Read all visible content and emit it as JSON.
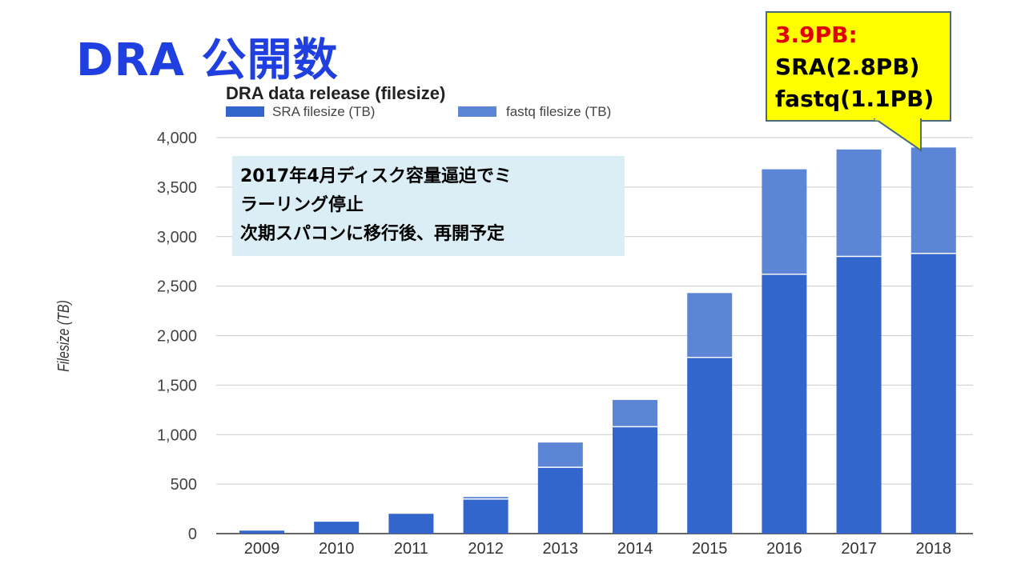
{
  "slide": {
    "title": "DRA 公開数"
  },
  "callout": {
    "line1": "3.9PB:",
    "line2": "SRA(2.8PB)",
    "line3": "fastq(1.1PB)",
    "line1_color": "#e00000",
    "background": "#ffff00"
  },
  "annotation": {
    "lines": [
      "2017年4月ディスク容量逼迫でミ",
      "ラーリング停止",
      "次期スパコンに移行後、再開予定"
    ]
  },
  "chart_data": {
    "type": "bar",
    "stacked": true,
    "title": "DRA data release (filesize)",
    "ylabel": "Filesize (TB)",
    "xlabel": "",
    "categories": [
      "2009",
      "2010",
      "2011",
      "2012",
      "2013",
      "2014",
      "2015",
      "2016",
      "2017",
      "2018"
    ],
    "series": [
      {
        "name": "SRA filesize (TB)",
        "color": "#3366cc",
        "values": [
          30,
          120,
          200,
          350,
          670,
          1080,
          1780,
          2620,
          2800,
          2830
        ]
      },
      {
        "name": "fastq filesize (TB)",
        "color": "#5c85d6",
        "values": [
          0,
          0,
          0,
          20,
          250,
          270,
          650,
          1060,
          1080,
          1070
        ]
      }
    ],
    "ylim": [
      0,
      4000
    ],
    "yticks": [
      0,
      500,
      1000,
      1500,
      2000,
      2500,
      3000,
      3500,
      4000
    ],
    "ytick_labels": [
      "0",
      "500",
      "1,000",
      "1,500",
      "2,000",
      "2,500",
      "3,000",
      "3,500",
      "4,000"
    ],
    "grid": true,
    "legend": "top-left"
  }
}
